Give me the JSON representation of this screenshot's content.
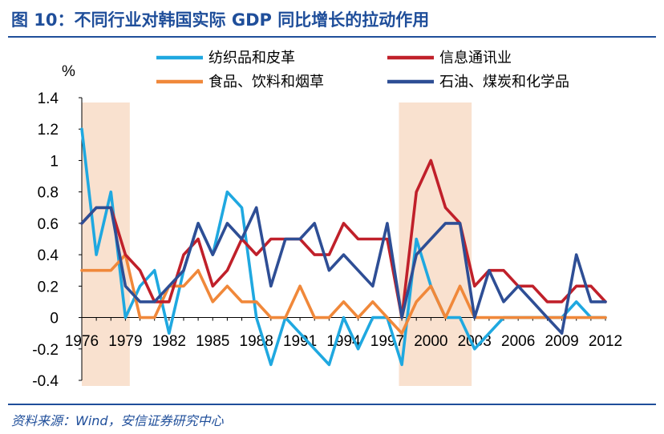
{
  "title": "图 10：不同行业对韩国实际 GDP 同比增长的拉动作用",
  "source": "资料来源：Wind，安信证券研究中心",
  "chart_data": {
    "type": "line",
    "unit_label": "%",
    "x": [
      1976,
      1977,
      1978,
      1979,
      1980,
      1981,
      1982,
      1983,
      1984,
      1985,
      1986,
      1987,
      1988,
      1989,
      1990,
      1991,
      1992,
      1993,
      1994,
      1995,
      1996,
      1997,
      1998,
      1999,
      2000,
      2001,
      2002,
      2003,
      2004,
      2005,
      2006,
      2007,
      2008,
      2009,
      2010,
      2011,
      2012
    ],
    "x_tick_labels": [
      "1976",
      "1979",
      "1982",
      "1985",
      "1988",
      "1991",
      "1994",
      "1997",
      "2000",
      "2003",
      "2006",
      "2009",
      "2012"
    ],
    "ylim": [
      -0.4,
      1.4
    ],
    "y_tick_labels": [
      "1.4",
      "1.2",
      "1",
      "0.8",
      "0.6",
      "0.4",
      "0.2",
      "0",
      "-0.2",
      "-0.4"
    ],
    "shaded_periods": [
      [
        1976,
        1979.3
      ],
      [
        1997.8,
        2002.8
      ]
    ],
    "legend_placement": "top",
    "series": [
      {
        "name": "纺织品和皮革",
        "color": "#1FA8E0",
        "values": [
          1.2,
          0.4,
          0.8,
          0.0,
          0.2,
          0.3,
          -0.1,
          0.3,
          0.6,
          0.4,
          0.8,
          0.7,
          0.0,
          -0.3,
          0.0,
          -0.1,
          -0.2,
          -0.3,
          0.0,
          -0.2,
          0.0,
          0.0,
          -0.3,
          0.5,
          0.2,
          0.0,
          0.0,
          -0.2,
          -0.1,
          0.0,
          0.0,
          0.0,
          0.0,
          0.0,
          0.1,
          0.0,
          0.0
        ]
      },
      {
        "name": "信息通讯业",
        "color": "#C0202A",
        "values": [
          0.6,
          0.7,
          0.7,
          0.4,
          0.3,
          0.1,
          0.1,
          0.4,
          0.5,
          0.2,
          0.3,
          0.5,
          0.4,
          0.5,
          0.5,
          0.5,
          0.4,
          0.4,
          0.6,
          0.5,
          0.5,
          0.5,
          0.0,
          0.8,
          1.0,
          0.7,
          0.6,
          0.2,
          0.3,
          0.3,
          0.2,
          0.2,
          0.1,
          0.1,
          0.2,
          0.2,
          0.1
        ]
      },
      {
        "name": "食品、饮料和烟草",
        "color": "#F0883A",
        "values": [
          0.3,
          0.3,
          0.3,
          0.4,
          0.0,
          0.0,
          0.2,
          0.2,
          0.3,
          0.1,
          0.2,
          0.1,
          0.1,
          0.0,
          0.0,
          0.2,
          0.0,
          0.0,
          0.1,
          0.0,
          0.1,
          0.0,
          -0.1,
          0.1,
          0.2,
          0.0,
          0.2,
          0.0,
          0.0,
          0.0,
          0.0,
          0.0,
          0.0,
          0.0,
          0.0,
          0.0,
          0.0
        ]
      },
      {
        "name": "石油、煤炭和化学品",
        "color": "#2E4E95",
        "values": [
          0.6,
          0.7,
          0.7,
          0.2,
          0.1,
          0.1,
          0.2,
          0.3,
          0.6,
          0.4,
          0.6,
          0.5,
          0.7,
          0.2,
          0.5,
          0.5,
          0.6,
          0.3,
          0.4,
          0.3,
          0.2,
          0.6,
          0.0,
          0.4,
          0.5,
          0.6,
          0.6,
          0.0,
          0.3,
          0.1,
          0.2,
          0.1,
          0.0,
          -0.1,
          0.4,
          0.1,
          0.1
        ]
      }
    ]
  }
}
